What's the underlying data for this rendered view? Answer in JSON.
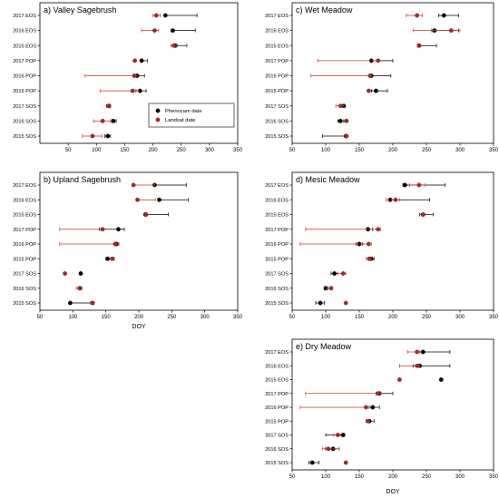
{
  "colors": {
    "phenocam": "#000000",
    "landsat": "#c0392b",
    "landsat_fill": "#a52a2a"
  },
  "legend": {
    "entries": [
      "Phenocam date",
      "Landsat date"
    ],
    "placement": "inside-lower-right of panel a"
  },
  "chart_data": [
    {
      "type": "scatter",
      "title": "a) Valley Sagebrush",
      "xlim": [
        0,
        350
      ],
      "xticks": [
        50,
        100,
        150,
        200,
        250,
        300,
        350
      ],
      "xlabel": "",
      "categories": [
        "2017 EOS",
        "2016 EOS",
        "2015 EOS",
        "2017 POP",
        "2016 POP",
        "2015 POP",
        "2017 SOS",
        "2016 SOS",
        "2015 SOS"
      ],
      "series": [
        {
          "name": "Phenocam date",
          "values": [
            222,
            235,
            240,
            180,
            172,
            177,
            122,
            130,
            120
          ],
          "err_low": [
            222,
            235,
            240,
            180,
            165,
            170,
            118,
            127,
            115
          ],
          "err_high": [
            278,
            275,
            260,
            190,
            185,
            188,
            125,
            135,
            125
          ]
        },
        {
          "name": "Landsat date",
          "values": [
            206,
            203,
            237,
            168,
            167,
            164,
            122,
            111,
            93
          ],
          "err_low": [
            200,
            180,
            232,
            168,
            80,
            107,
            122,
            95,
            75
          ],
          "err_high": [
            213,
            210,
            242,
            168,
            172,
            175,
            122,
            125,
            110
          ]
        }
      ]
    },
    {
      "type": "scatter",
      "title": "b) Upland Sagebrush",
      "xlim": [
        50,
        350
      ],
      "xticks": [
        50,
        100,
        150,
        200,
        250,
        300,
        350
      ],
      "xlabel": "DOY",
      "categories": [
        "2017 EOS",
        "2016 EOS",
        "2015 EOS",
        "2017 POP",
        "2016 POP",
        "2015 POP",
        "2017 SOS",
        "2016 SOS",
        "2015 SOS"
      ],
      "series": [
        {
          "name": "Phenocam date",
          "values": [
            224,
            231,
            210,
            169,
            166,
            153,
            112,
            111,
            96
          ],
          "err_low": [
            224,
            231,
            210,
            140,
            166,
            150,
            110,
            110,
            96
          ],
          "err_high": [
            272,
            275,
            245,
            178,
            168,
            158,
            113,
            112,
            127
          ]
        },
        {
          "name": "Landsat date",
          "values": [
            192,
            198,
            211,
            145,
            164,
            160,
            88,
            110,
            130
          ],
          "err_low": [
            190,
            198,
            211,
            80,
            80,
            160,
            88,
            105,
            127
          ],
          "err_high": [
            224,
            225,
            212,
            145,
            170,
            163,
            88,
            112,
            132
          ]
        }
      ]
    },
    {
      "type": "scatter",
      "title": "c) Wet Meadow",
      "xlim": [
        50,
        350
      ],
      "xticks": [
        50,
        100,
        150,
        200,
        250,
        300,
        350
      ],
      "xlabel": "",
      "categories": [
        "2017 EOS",
        "2016 EOS",
        "2015 EOS",
        "2017 POP",
        "2016 POP",
        "2015 POP",
        "2017 SOS",
        "2016 SOS",
        "2015 SOS"
      ],
      "series": [
        {
          "name": "Phenocam date",
          "values": [
            276,
            262,
            239,
            168,
            168,
            175,
            127,
            122,
            130
          ],
          "err_low": [
            268,
            258,
            237,
            168,
            168,
            168,
            122,
            118,
            95
          ],
          "err_high": [
            298,
            298,
            265,
            200,
            197,
            192,
            128,
            127,
            130
          ]
        },
        {
          "name": "Landsat date",
          "values": [
            236,
            287,
            239,
            178,
            166,
            164,
            122,
            131,
            131
          ],
          "err_low": [
            220,
            230,
            237,
            88,
            78,
            164,
            115,
            131,
            131
          ],
          "err_high": [
            244,
            300,
            241,
            178,
            168,
            164,
            127,
            131,
            131
          ]
        }
      ]
    },
    {
      "type": "scatter",
      "title": "d) Mesic Meadow",
      "xlim": [
        50,
        350
      ],
      "xticks": [
        50,
        100,
        150,
        200,
        250,
        300,
        350
      ],
      "xlabel": "",
      "categories": [
        "2017 EOS",
        "2016 EOS",
        "2015 EOS",
        "2017 POP",
        "2016 POP",
        "2015 POP",
        "2017 SOS",
        "2016 SOS",
        "2015 SOS"
      ],
      "series": [
        {
          "name": "Phenocam date",
          "values": [
            218,
            196,
            245,
            163,
            150,
            168,
            113,
            100,
            92
          ],
          "err_low": [
            215,
            195,
            240,
            163,
            145,
            163,
            108,
            98,
            85
          ],
          "err_high": [
            278,
            255,
            260,
            170,
            155,
            172,
            118,
            103,
            98
          ]
        },
        {
          "name": "Landsat date",
          "values": [
            239,
            204,
            245,
            178,
            164,
            165,
            126,
            108,
            130
          ],
          "err_low": [
            225,
            190,
            245,
            70,
            62,
            160,
            118,
            102,
            130
          ],
          "err_high": [
            248,
            210,
            245,
            182,
            168,
            168,
            130,
            110,
            130
          ]
        }
      ]
    },
    {
      "type": "scatter",
      "title": "e) Dry Meadow",
      "xlim": [
        50,
        350
      ],
      "xticks": [
        50,
        100,
        150,
        200,
        250,
        300,
        350
      ],
      "xlabel": "DOY",
      "categories": [
        "2017 EOS",
        "2016 EOS",
        "2015 EOS",
        "2017 POP",
        "2016 POP",
        "2015 POP",
        "2017 SOS",
        "2016 SOS",
        "2015 SOS"
      ],
      "series": [
        {
          "name": "Phenocam date",
          "values": [
            245,
            240,
            272,
            180,
            170,
            165,
            126,
            111,
            80
          ],
          "err_low": [
            235,
            230,
            272,
            175,
            165,
            160,
            100,
            100,
            75
          ],
          "err_high": [
            285,
            285,
            272,
            200,
            180,
            172,
            128,
            120,
            90
          ]
        },
        {
          "name": "Landsat date",
          "values": [
            236,
            236,
            210,
            178,
            160,
            163,
            118,
            104,
            130
          ],
          "err_low": [
            222,
            210,
            210,
            70,
            62,
            160,
            112,
            95,
            130
          ],
          "err_high": [
            240,
            240,
            210,
            182,
            165,
            165,
            122,
            120,
            130
          ]
        }
      ]
    }
  ]
}
